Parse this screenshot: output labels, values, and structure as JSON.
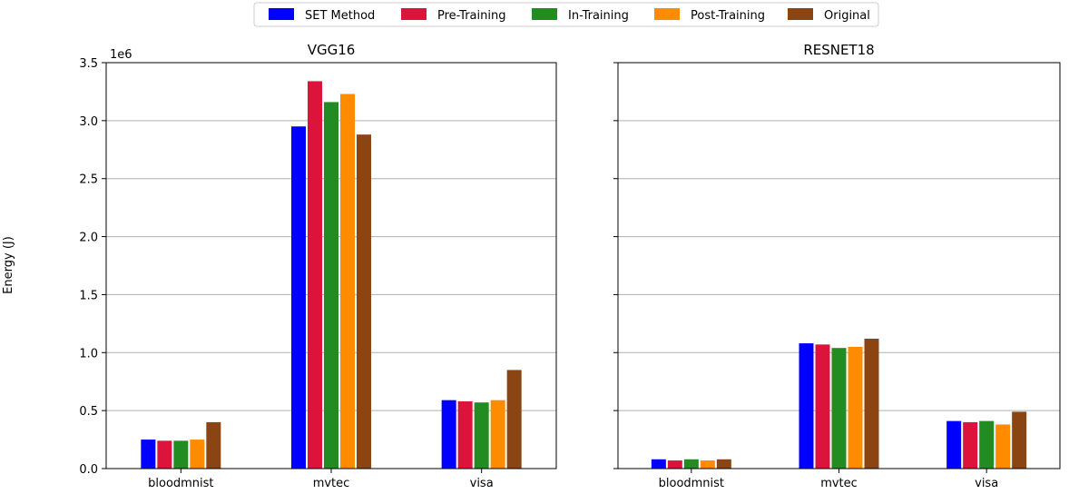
{
  "legend": {
    "placement": "top-center",
    "entries": [
      {
        "label": "SET Method",
        "color": "#0000ff"
      },
      {
        "label": "Pre-Training",
        "color": "#dc143c"
      },
      {
        "label": "In-Training",
        "color": "#228b22"
      },
      {
        "label": "Post-Training",
        "color": "#ff8c00"
      },
      {
        "label": "Original",
        "color": "#8b4513"
      }
    ]
  },
  "ylabel": "Energy (J)",
  "offset_text": "1e6",
  "chart_data": [
    {
      "type": "bar",
      "title": "VGG16",
      "categories": [
        "bloodmnist",
        "mvtec",
        "visa"
      ],
      "ylim": [
        0,
        3.5
      ],
      "yticks": [
        "0.0",
        "0.5",
        "1.0",
        "1.5",
        "2.0",
        "2.5",
        "3.0",
        "3.5"
      ],
      "grid": "horizontal",
      "unit_multiplier": "1e6",
      "series": [
        {
          "name": "SET Method",
          "values": [
            0.25,
            2.95,
            0.59
          ]
        },
        {
          "name": "Pre-Training",
          "values": [
            0.24,
            3.34,
            0.58
          ]
        },
        {
          "name": "In-Training",
          "values": [
            0.24,
            3.16,
            0.57
          ]
        },
        {
          "name": "Post-Training",
          "values": [
            0.25,
            3.23,
            0.59
          ]
        },
        {
          "name": "Original",
          "values": [
            0.4,
            2.88,
            0.85
          ]
        }
      ]
    },
    {
      "type": "bar",
      "title": "RESNET18",
      "categories": [
        "bloodmnist",
        "mvtec",
        "visa"
      ],
      "ylim": [
        0,
        3.5
      ],
      "grid": "horizontal",
      "shared_y": true,
      "series": [
        {
          "name": "SET Method",
          "values": [
            0.08,
            1.08,
            0.41
          ]
        },
        {
          "name": "Pre-Training",
          "values": [
            0.07,
            1.07,
            0.4
          ]
        },
        {
          "name": "In-Training",
          "values": [
            0.08,
            1.04,
            0.41
          ]
        },
        {
          "name": "Post-Training",
          "values": [
            0.07,
            1.05,
            0.38
          ]
        },
        {
          "name": "Original",
          "values": [
            0.08,
            1.12,
            0.49
          ]
        }
      ]
    }
  ]
}
